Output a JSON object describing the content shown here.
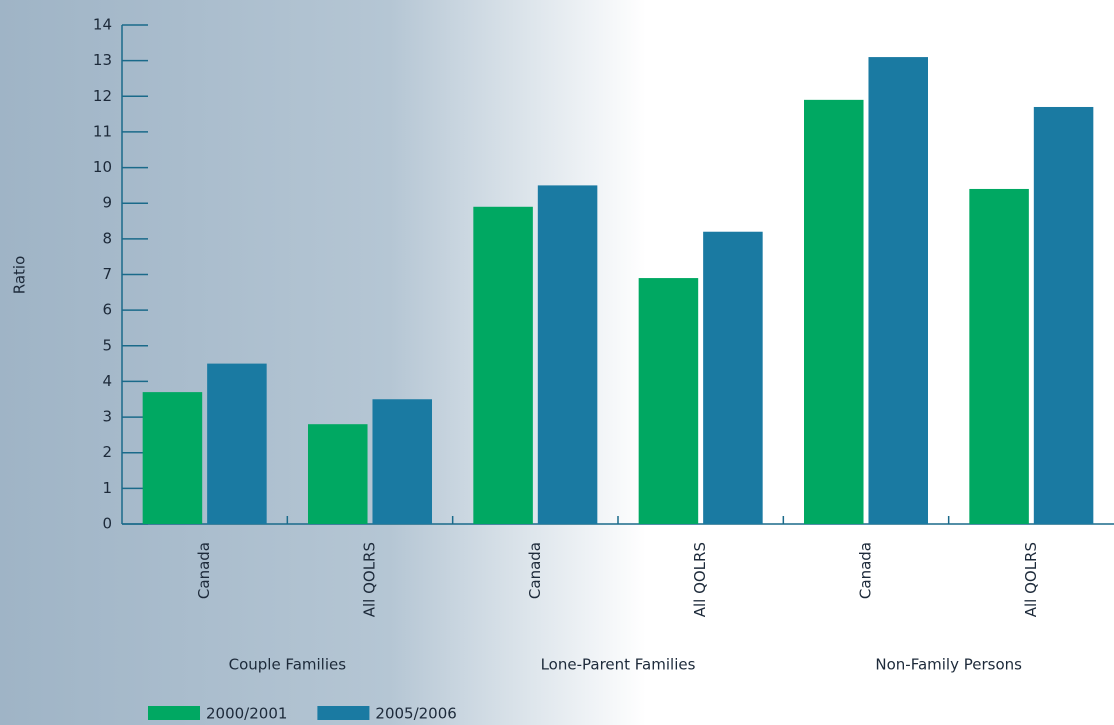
{
  "chart_data": {
    "type": "bar",
    "y_label": "Ratio",
    "groups": [
      {
        "name": "Couple Families",
        "categories": [
          "Canada",
          "All QOLRS"
        ]
      },
      {
        "name": "Lone-Parent Families",
        "categories": [
          "Canada",
          "All QOLRS"
        ]
      },
      {
        "name": "Non-Family Persons",
        "categories": [
          "Canada",
          "All QOLRS"
        ]
      }
    ],
    "series": [
      {
        "name": "2000/2001",
        "color": "#00a862",
        "values": [
          3.7,
          2.8,
          8.9,
          6.9,
          11.9,
          9.4
        ]
      },
      {
        "name": "2005/2006",
        "color": "#1a7aa2",
        "values": [
          4.5,
          3.5,
          9.5,
          8.2,
          13.1,
          11.7
        ]
      }
    ],
    "ylim": [
      0,
      14
    ],
    "yticks": [
      0,
      1,
      2,
      3,
      4,
      5,
      6,
      7,
      8,
      9,
      10,
      11,
      12,
      13,
      14
    ],
    "grid": false,
    "legend": "bottom-left"
  }
}
